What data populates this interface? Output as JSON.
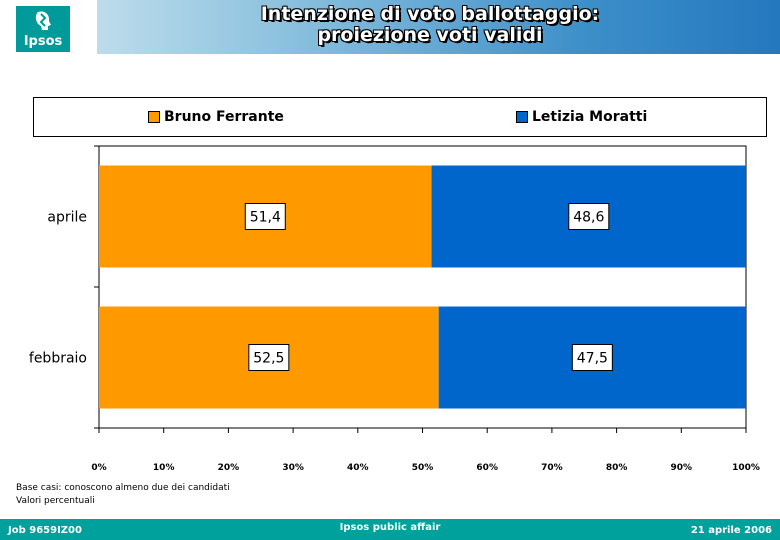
{
  "header": {
    "title_line1": "Intenzione di voto ballottaggio:",
    "title_line2": "proiezione voti validi",
    "logo_text": "Ipsos"
  },
  "chart_data": {
    "type": "bar",
    "orientation": "horizontal",
    "stacked": "percent",
    "categories": [
      "aprile",
      "febbraio"
    ],
    "series": [
      {
        "name": "Bruno Ferrante",
        "values": [
          51.4,
          52.5
        ],
        "labels": [
          "51,4",
          "52,5"
        ],
        "color": "#ff9900"
      },
      {
        "name": "Letizia Moratti",
        "values": [
          48.6,
          47.5
        ],
        "labels": [
          "48,6",
          "47,5"
        ],
        "color": "#0066cc"
      }
    ],
    "xlim": [
      0,
      100
    ],
    "xticks": [
      "0%",
      "10%",
      "20%",
      "30%",
      "40%",
      "50%",
      "60%",
      "70%",
      "80%",
      "90%",
      "100%"
    ],
    "legend_position": "top",
    "grid": false
  },
  "notes": {
    "line1": "Base casi: conoscono almeno due dei candidati",
    "line2": "Valori percentuali"
  },
  "footer": {
    "left": "Job 9659IZ00",
    "center": "Ipsos public affair",
    "right": "21 aprile 2006"
  }
}
